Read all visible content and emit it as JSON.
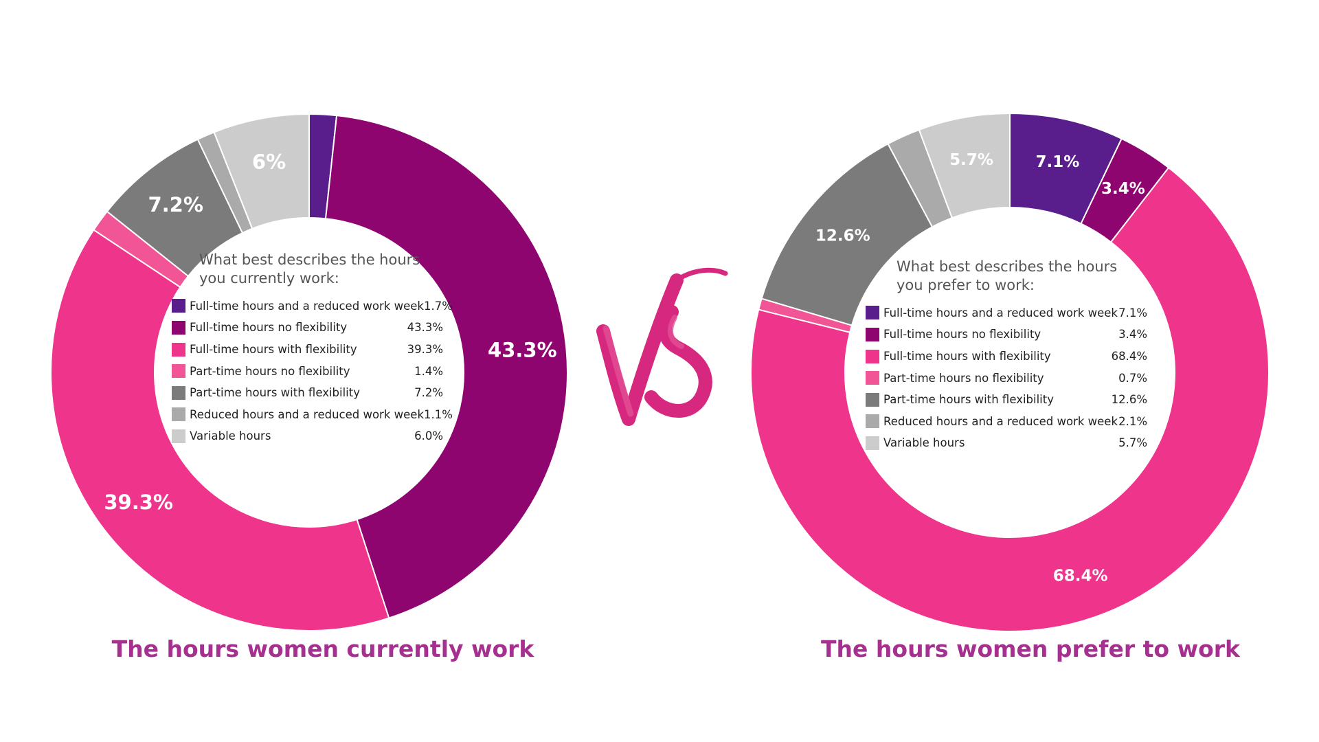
{
  "charts": [
    {
      "title": "The hours women currently work",
      "legend_title": "What best describes the hours you currently work:",
      "slice_labels": [
        "",
        "43.3%",
        "39.3%",
        "",
        "7.2%",
        "",
        "6%"
      ]
    },
    {
      "title": "The hours women prefer to work",
      "legend_title": "What best describes the hours you prefer to work:",
      "slice_labels": [
        "7.1%",
        "3.4%",
        "68.4%",
        "",
        "12.6%",
        "",
        "5.7%"
      ]
    }
  ],
  "vs_label": "VS",
  "chart_data": [
    {
      "type": "pie",
      "categories": [
        "Full-time hours and a reduced work week",
        "Full-time hours no flexibility",
        "Full-time hours with flexibility",
        "Part-time hours no flexibility",
        "Part-time hours with flexibility",
        "Reduced hours and a reduced work week",
        "Variable hours"
      ],
      "values": [
        1.7,
        43.3,
        39.3,
        1.4,
        7.2,
        1.1,
        6.0
      ],
      "value_labels": [
        "1.7%",
        "43.3%",
        "39.3%",
        "1.4%",
        "7.2%",
        "1.1%",
        "6.0%"
      ],
      "colors": [
        "#5a1e8c",
        "#8f0570",
        "#ef348b",
        "#f25596",
        "#7b7b7b",
        "#aaaaaa",
        "#cccccc"
      ],
      "title": "The hours women currently work",
      "donut": true,
      "legend_placement": "center"
    },
    {
      "type": "pie",
      "categories": [
        "Full-time hours and a reduced work week",
        "Full-time hours no flexibility",
        "Full-time hours with flexibility",
        "Part-time hours no flexibility",
        "Part-time hours with flexibility",
        "Reduced hours and a reduced work week",
        "Variable hours"
      ],
      "values": [
        7.1,
        3.4,
        68.4,
        0.7,
        12.6,
        2.1,
        5.7
      ],
      "value_labels": [
        "7.1%",
        "3.4%",
        "68.4%",
        "0.7%",
        "12.6%",
        "2.1%",
        "5.7%"
      ],
      "colors": [
        "#5a1e8c",
        "#8f0570",
        "#ef348b",
        "#f25596",
        "#7b7b7b",
        "#aaaaaa",
        "#cccccc"
      ],
      "title": "The hours women prefer to work",
      "donut": true,
      "legend_placement": "center"
    }
  ]
}
